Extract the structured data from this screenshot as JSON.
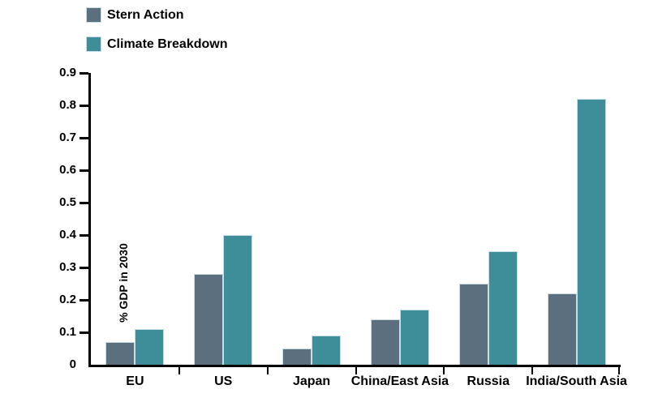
{
  "colors": {
    "stern_action": "#5b6f7e",
    "climate_breakdown": "#3e8e9a",
    "axis": "#000000",
    "bar_edge": "#c8dde5",
    "background": "#ffffff"
  },
  "chart_data": {
    "type": "bar",
    "title": "",
    "xlabel": "",
    "ylabel": "% GDP in 2030",
    "categories": [
      "EU",
      "US",
      "Japan",
      "China/East Asia",
      "Russia",
      "India/South Asia"
    ],
    "series": [
      {
        "name": "Stern Action",
        "color": "#5b6f7e",
        "values": [
          0.07,
          0.28,
          0.05,
          0.14,
          0.25,
          0.22
        ]
      },
      {
        "name": "Climate Breakdown",
        "color": "#3e8e9a",
        "values": [
          0.11,
          0.4,
          0.09,
          0.17,
          0.35,
          0.82
        ]
      }
    ],
    "ylim": [
      0,
      0.9
    ],
    "y_ticks": [
      {
        "value": 0.0,
        "label": "0"
      },
      {
        "value": 0.1,
        "label": "0.1"
      },
      {
        "value": 0.2,
        "label": "0.2"
      },
      {
        "value": 0.3,
        "label": "0.3"
      },
      {
        "value": 0.4,
        "label": "0.4"
      },
      {
        "value": 0.5,
        "label": "0.5"
      },
      {
        "value": 0.6,
        "label": "0.6"
      },
      {
        "value": 0.7,
        "label": "0.7"
      },
      {
        "value": 0.8,
        "label": "0.8"
      },
      {
        "value": 0.9,
        "label": "0.9"
      }
    ],
    "grid": false,
    "legend_position": "top-left"
  }
}
